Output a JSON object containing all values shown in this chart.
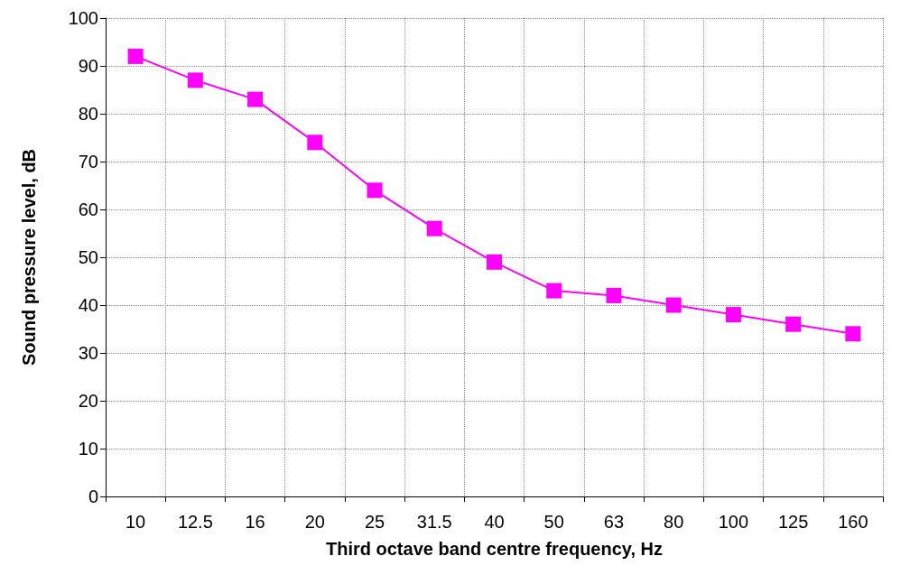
{
  "chart_data": {
    "type": "line",
    "xlabel": "Third octave band centre frequency, Hz",
    "ylabel": "Sound pressure level, dB",
    "categories": [
      "10",
      "12.5",
      "16",
      "20",
      "25",
      "31.5",
      "40",
      "50",
      "63",
      "80",
      "100",
      "125",
      "160"
    ],
    "series": [
      {
        "color": "#ff00ff",
        "values": [
          92,
          87,
          83,
          74,
          64,
          56,
          49,
          43,
          42,
          40,
          38,
          36,
          34
        ]
      }
    ],
    "ylim": [
      0,
      100
    ],
    "yticks": [
      0,
      10,
      20,
      30,
      40,
      50,
      60,
      70,
      80,
      90,
      100
    ],
    "grid": true,
    "marker": "square",
    "line_style": "solid"
  }
}
